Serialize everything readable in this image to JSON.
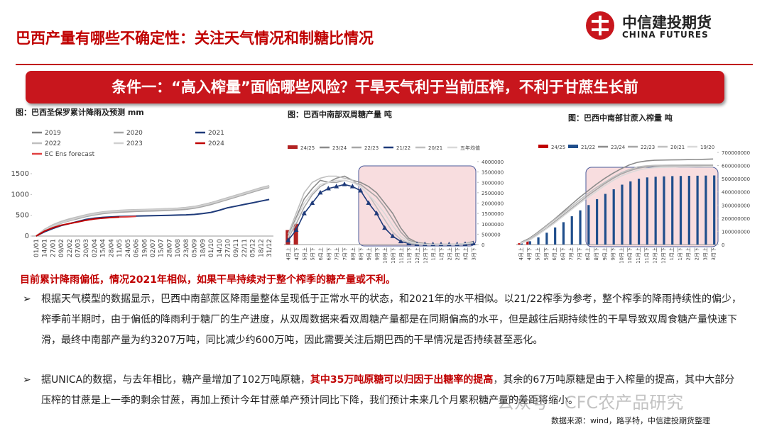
{
  "header": {
    "title": "巴西产量有哪些不确定性：关注天气情况和制糖比情况",
    "logo_cn": "中信建投期货",
    "logo_en": "CHINA FUTURES"
  },
  "banner": "条件一：“高入榨量”面临哪些风险？干旱天气利于当前压榨，不利于甘蔗生长前",
  "chart_data": [
    {
      "type": "line",
      "title": "图：巴西圣保罗累计降雨及预测 mm",
      "categories": [
        "01/01",
        "14/01",
        "27/01",
        "09/02",
        "22/02",
        "07/03",
        "20/03",
        "02/04",
        "15/04",
        "28/04",
        "11/05",
        "24/05",
        "06/06",
        "19/06",
        "02/07",
        "15/07",
        "28/07",
        "10/08",
        "23/08",
        "05/09",
        "18/09",
        "01/10",
        "14/10",
        "27/10",
        "09/11",
        "22/11",
        "05/12",
        "18/12",
        "31/12"
      ],
      "ylim": [
        0,
        1500
      ],
      "yticks": [
        0,
        500,
        1000,
        1500
      ],
      "grid": false,
      "series": [
        {
          "name": "2019",
          "color": "#808080",
          "values": [
            0,
            150,
            250,
            330,
            380,
            430,
            480,
            520,
            560,
            580,
            600,
            610,
            620,
            625,
            630,
            640,
            650,
            660,
            670,
            700,
            750,
            800,
            850,
            900,
            950,
            1000,
            1080,
            1150,
            1200
          ]
        },
        {
          "name": "2020",
          "color": "#a6a6a6",
          "values": [
            0,
            130,
            230,
            310,
            370,
            420,
            470,
            510,
            540,
            560,
            575,
            585,
            595,
            600,
            605,
            612,
            620,
            630,
            645,
            670,
            710,
            760,
            820,
            880,
            940,
            1000,
            1060,
            1120,
            1170
          ]
        },
        {
          "name": "2021",
          "color": "#1f3b7a",
          "values": [
            0,
            100,
            180,
            250,
            300,
            350,
            400,
            430,
            450,
            460,
            470,
            475,
            480,
            485,
            490,
            495,
            500,
            505,
            510,
            520,
            540,
            570,
            620,
            680,
            720,
            760,
            800,
            840,
            880
          ]
        },
        {
          "name": "2022",
          "color": "#bfbfbf",
          "values": [
            0,
            160,
            270,
            350,
            410,
            460,
            510,
            550,
            580,
            600,
            615,
            625,
            632,
            638,
            645,
            652,
            660,
            670,
            685,
            710,
            750,
            800,
            860,
            920,
            980,
            1040,
            1100,
            1160,
            1210
          ]
        },
        {
          "name": "2023",
          "color": "#d0d0d0",
          "values": [
            0,
            140,
            240,
            320,
            380,
            440,
            490,
            530,
            565,
            585,
            600,
            612,
            620,
            627,
            633,
            640,
            648,
            658,
            672,
            695,
            735,
            785,
            840,
            900,
            960,
            1020,
            1080,
            1140,
            1190
          ]
        },
        {
          "name": "2024",
          "color": "#c00000",
          "values": [
            0,
            120,
            200,
            260,
            300,
            340,
            380,
            410,
            430,
            445,
            455,
            null,
            null,
            null,
            null,
            null,
            null,
            null,
            null,
            null,
            null,
            null,
            null,
            null,
            null,
            null,
            null,
            null,
            null
          ]
        },
        {
          "name": "EC Ens forecast",
          "color": "#e04040",
          "values": [
            null,
            null,
            null,
            null,
            null,
            null,
            null,
            null,
            null,
            null,
            455,
            462,
            472,
            null,
            null,
            null,
            null,
            null,
            null,
            null,
            null,
            null,
            null,
            null,
            null,
            null,
            null,
            null,
            null
          ]
        }
      ]
    },
    {
      "type": "combo",
      "title": "图：巴西中南部双周糖产量 吨",
      "categories": [
        "4月上",
        "4月下",
        "5月上",
        "5月下",
        "6月上",
        "6月下",
        "7月上",
        "7月下",
        "8月上",
        "8月下",
        "9月上",
        "9月下",
        "10月上",
        "10月下",
        "11月上",
        "11月下",
        "12月上",
        "12月下",
        "1月上",
        "1月下",
        "2月上",
        "2月下",
        "3月上",
        "3月下"
      ],
      "ylim": [
        0,
        4000000
      ],
      "yticks": [
        0,
        500000,
        1000000,
        1500000,
        2000000,
        2500000,
        3000000,
        3500000,
        4000000
      ],
      "series": [
        {
          "name": "24/25",
          "kind": "bar",
          "color": "#b22222",
          "values": [
            700000,
            1000000,
            null,
            null,
            null,
            null,
            null,
            null,
            null,
            null,
            null,
            null,
            null,
            null,
            null,
            null,
            null,
            null,
            null,
            null,
            null,
            null,
            null,
            null
          ]
        },
        {
          "name": "23/24",
          "kind": "line",
          "color": "#8c8c8c",
          "values": [
            400000,
            1300000,
            2200000,
            2700000,
            3100000,
            3000000,
            3200000,
            3300000,
            3100000,
            3000000,
            2800000,
            2500000,
            2000000,
            1500000,
            800000,
            300000,
            100000,
            50000,
            20000,
            10000,
            10000,
            20000,
            50000,
            150000
          ]
        },
        {
          "name": "22/23",
          "kind": "line",
          "color": "#a6a6a6",
          "values": [
            300000,
            1000000,
            1800000,
            2400000,
            2800000,
            3000000,
            3000000,
            3100000,
            3000000,
            2900000,
            2600000,
            2300000,
            1800000,
            1200000,
            600000,
            200000,
            80000,
            30000,
            10000,
            10000,
            10000,
            20000,
            50000,
            100000
          ]
        },
        {
          "name": "21/22",
          "kind": "line",
          "marker": "triangle",
          "color": "#1f3b7a",
          "values": [
            200000,
            700000,
            1500000,
            2000000,
            2500000,
            2700000,
            2800000,
            2900000,
            2800000,
            2600000,
            2000000,
            1500000,
            800000,
            400000,
            150000,
            50000,
            20000,
            10000,
            5000,
            5000,
            5000,
            10000,
            20000,
            50000
          ]
        },
        {
          "name": "20/21",
          "kind": "line",
          "color": "#bfbfbf",
          "values": [
            500000,
            1500000,
            2500000,
            3000000,
            3200000,
            3300000,
            3300000,
            3200000,
            3100000,
            2800000,
            2400000,
            1800000,
            1200000,
            600000,
            250000,
            80000,
            30000,
            10000,
            10000,
            10000,
            10000,
            20000,
            40000,
            80000
          ]
        },
        {
          "name": "五年均值",
          "kind": "line",
          "color": "#d9d9d9",
          "values": [
            350000,
            1200000,
            2000000,
            2500000,
            2900000,
            3000000,
            3100000,
            3100000,
            3000000,
            2800000,
            2400000,
            2000000,
            1500000,
            900000,
            400000,
            150000,
            50000,
            20000,
            10000,
            10000,
            10000,
            20000,
            40000,
            100000
          ]
        }
      ]
    },
    {
      "type": "combo",
      "title": "图：巴西中南部甘蔗入榨量 吨",
      "categories": [
        "4月上",
        "4月下",
        "5月上",
        "5月下",
        "6月上",
        "6月下",
        "7月上",
        "7月下",
        "8月上",
        "8月下",
        "9月上",
        "9月下",
        "10月上",
        "10月下",
        "11月上",
        "11月下",
        "12月上",
        "12月下",
        "1月上",
        "1月下",
        "2月上",
        "2月下",
        "3月上",
        "3月下"
      ],
      "ylim": [
        0,
        700000000
      ],
      "yticks": [
        0,
        100000000,
        200000000,
        300000000,
        400000000,
        500000000,
        600000000,
        700000000
      ],
      "series": [
        {
          "name": "24/25",
          "kind": "bar",
          "color": "#c00000",
          "values": [
            10000000,
            25000000,
            null,
            null,
            null,
            null,
            null,
            null,
            null,
            null,
            null,
            null,
            null,
            null,
            null,
            null,
            null,
            null,
            null,
            null,
            null,
            null,
            null,
            null
          ]
        },
        {
          "name": "21/22",
          "kind": "bar",
          "color": "#1f4e8c",
          "values": [
            8000000,
            25000000,
            55000000,
            90000000,
            130000000,
            170000000,
            215000000,
            260000000,
            300000000,
            345000000,
            385000000,
            420000000,
            455000000,
            480000000,
            500000000,
            510000000,
            515000000,
            518000000,
            520000000,
            521000000,
            522000000,
            523000000,
            524000000,
            525000000
          ]
        },
        {
          "name": "23/24",
          "kind": "line",
          "color": "#8c8c8c",
          "values": [
            15000000,
            45000000,
            90000000,
            140000000,
            190000000,
            245000000,
            300000000,
            355000000,
            405000000,
            455000000,
            500000000,
            540000000,
            575000000,
            605000000,
            625000000,
            635000000,
            640000000,
            642000000,
            643000000,
            644000000,
            645000000,
            646000000,
            648000000,
            650000000
          ]
        },
        {
          "name": "22/23",
          "kind": "line",
          "color": "#a6a6a6",
          "values": [
            10000000,
            35000000,
            75000000,
            120000000,
            170000000,
            220000000,
            270000000,
            320000000,
            370000000,
            415000000,
            460000000,
            500000000,
            535000000,
            560000000,
            580000000,
            590000000,
            595000000,
            597000000,
            598000000,
            598000000,
            599000000,
            599000000,
            600000000,
            600000000
          ]
        },
        {
          "name": "20/21",
          "kind": "line",
          "color": "#bfbfbf",
          "values": [
            12000000,
            40000000,
            85000000,
            135000000,
            185000000,
            235000000,
            285000000,
            335000000,
            385000000,
            430000000,
            470000000,
            510000000,
            545000000,
            570000000,
            590000000,
            598000000,
            602000000,
            603000000,
            604000000,
            604000000,
            605000000,
            605000000,
            605000000,
            605000000
          ]
        },
        {
          "name": "19/20",
          "kind": "line",
          "color": "#d9d9d9",
          "values": [
            8000000,
            30000000,
            70000000,
            115000000,
            160000000,
            210000000,
            260000000,
            310000000,
            355000000,
            400000000,
            445000000,
            485000000,
            520000000,
            545000000,
            565000000,
            578000000,
            584000000,
            586000000,
            588000000,
            589000000,
            589000000,
            590000000,
            590000000,
            590000000
          ]
        }
      ]
    }
  ],
  "conclusion": "目前累计降雨偏低，情况2021年相似，如果干旱持续对于整个榨季的糖产量或不利。",
  "bullets": [
    [
      "根据天气模型的数据显示，巴西中南部蔗区降雨量整体呈现低于正常水平的状态，和2021年的水平相似。以21/22榨季为参考，整个榨季的降雨持续性的偏少，榨季前半期时，由于偏低的降雨利于糖厂的生产进度，从双周数据来看双周糖产量都是在同期偏高的水平，但是越往后期持续性的干旱导致双周食糖产量快速下滑，最终中南部产量为约3207万吨，同比减少约600万吨，因此需要关注后期巴西的干旱情况是否持续甚至恶化。"
    ],
    [
      "据UNICA的数据，与去年相比，糖产量增加了102万吨原糖，",
      "其中35万吨原糖可以归因于出糖率的提高",
      "，其余的67万吨原糖是由于入榨量的提高，其中大部分压榨的甘蔗是上一季的剩余甘蔗，再加上预计今年甘蔗单产预计同比下降，我们预计未来几个月累积糖产量的差距将缩小。"
    ]
  ],
  "watermark": "公众号 · CFC农产品研究",
  "source": "数据来源：wind，路孚特，中信建投期货整理"
}
